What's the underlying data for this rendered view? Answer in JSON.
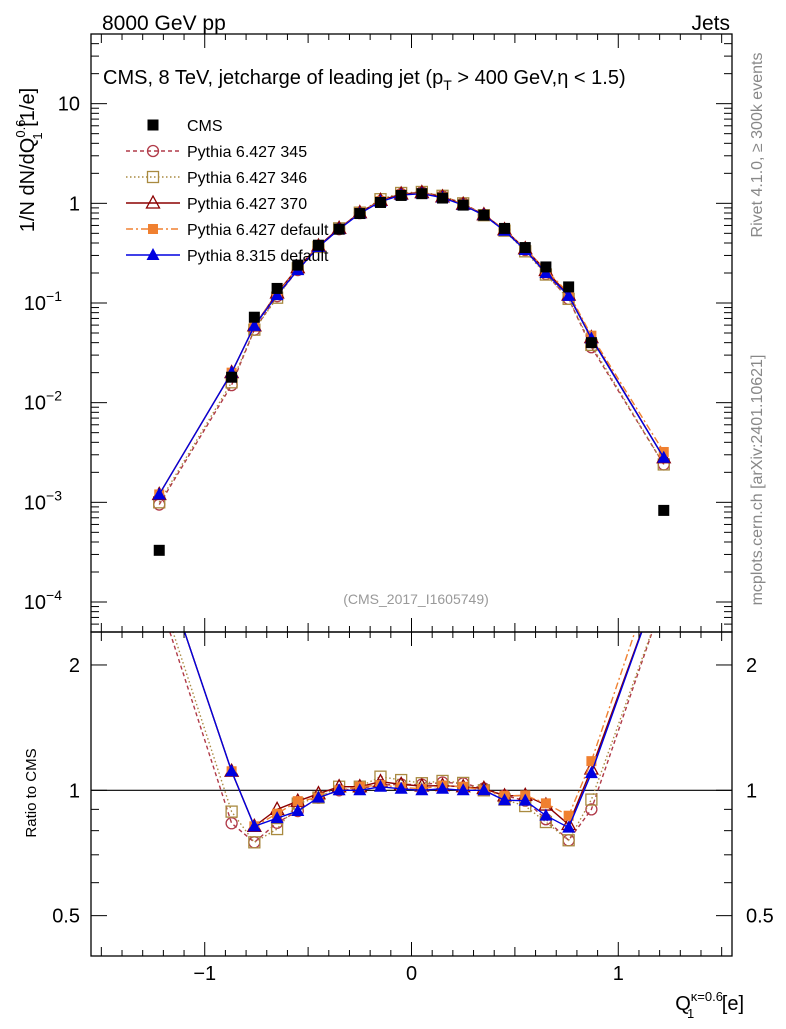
{
  "header": {
    "energy": "8000 GeV pp",
    "category": "Jets"
  },
  "side_labels": {
    "rivet": "Rivet 4.1.0, ≥ 300k events",
    "mcplots": "mcplots.cern.ch [arXiv:2401.10621]"
  },
  "chart_data": {
    "type": "line",
    "title": "CMS, 8 TeV, jetcharge of leading jet (p_T > 400 GeV,η < 1.5)",
    "title_parts": [
      "CMS, 8 TeV, jetcharge of leading jet (p",
      "T",
      " > 400 GeV,η < 1.5)"
    ],
    "analysis_tag": "(CMS_2017_I1605749)",
    "ylabel_main": "1/N dN/dQ1^0.6 [1/e]",
    "ylabel_main_parts": [
      "1/N dN/dQ",
      "0.6",
      "1",
      " [1/e]"
    ],
    "ylabel_ratio": "Ratio to CMS",
    "xlabel": "Q1^κ=0.6 [e]",
    "xlabel_parts": [
      "Q",
      "κ=0.6",
      "1",
      " [e]"
    ],
    "xlim": [
      -1.55,
      1.55
    ],
    "ylim_main": [
      5e-05,
      50
    ],
    "ylim_ratio": [
      0.4,
      2.4
    ],
    "scale_main": "log",
    "scale_ratio": "log",
    "x_ticks": [
      -1,
      0,
      1
    ],
    "x_tick_labels": [
      "−1",
      "0",
      "1"
    ],
    "y_ticks_main": [
      0.0001,
      0.001,
      0.01,
      0.1,
      1,
      10
    ],
    "y_tick_labels_main": [
      [
        "10",
        "−4"
      ],
      [
        "10",
        "−3"
      ],
      [
        "10",
        "−2"
      ],
      [
        "10",
        "−1"
      ],
      [
        "1",
        ""
      ],
      [
        "10",
        ""
      ]
    ],
    "y_ticks_ratio": [
      0.5,
      1,
      2
    ],
    "y_tick_labels_ratio": [
      "0.5",
      "1",
      "2"
    ],
    "legend_position": "top-left",
    "x": [
      -1.22,
      -0.87,
      -0.76,
      -0.65,
      -0.55,
      -0.45,
      -0.35,
      -0.25,
      -0.15,
      -0.05,
      0.05,
      0.15,
      0.25,
      0.35,
      0.45,
      0.55,
      0.65,
      0.76,
      0.87,
      1.22
    ],
    "data": {
      "name": "CMS",
      "color": "#000000",
      "values": [
        0.00033,
        0.018,
        0.072,
        0.14,
        0.24,
        0.38,
        0.55,
        0.79,
        1.02,
        1.2,
        1.25,
        1.13,
        0.96,
        0.76,
        0.56,
        0.36,
        0.23,
        0.145,
        0.04,
        0.00083
      ]
    },
    "series": [
      {
        "name": "Pythia 6.427 345",
        "color": "#b03a48",
        "dash": "4,3",
        "marker": "open-circle",
        "values": [
          0.00095,
          0.015,
          0.054,
          0.117,
          0.214,
          0.365,
          0.55,
          0.798,
          1.05,
          1.24,
          1.29,
          1.18,
          0.998,
          0.768,
          0.544,
          0.34,
          0.196,
          0.11,
          0.036,
          0.0024
        ]
      },
      {
        "name": "Pythia 6.427 346",
        "color": "#a98a40",
        "dash": "1.5,2.5",
        "marker": "open-square",
        "values": [
          0.001,
          0.016,
          0.054,
          0.113,
          0.223,
          0.365,
          0.561,
          0.806,
          1.1,
          1.27,
          1.3,
          1.19,
          1.0,
          0.76,
          0.532,
          0.33,
          0.193,
          0.11,
          0.038,
          0.0024
        ]
      },
      {
        "name": "Pythia 6.427 370",
        "color": "#8b0000",
        "dash": "",
        "marker": "open-triangle",
        "values": [
          0.0012,
          0.02,
          0.059,
          0.126,
          0.226,
          0.373,
          0.561,
          0.806,
          1.07,
          1.24,
          1.28,
          1.16,
          0.979,
          0.768,
          0.543,
          0.35,
          0.212,
          0.12,
          0.045,
          0.0028
        ]
      },
      {
        "name": "Pythia 6.427 default",
        "color": "#f08030",
        "dash": "7,3,2,3",
        "marker": "filled-square",
        "values": [
          0.0012,
          0.02,
          0.059,
          0.123,
          0.226,
          0.365,
          0.55,
          0.806,
          1.05,
          1.22,
          1.26,
          1.16,
          0.979,
          0.76,
          0.543,
          0.35,
          0.214,
          0.126,
          0.047,
          0.0032
        ]
      },
      {
        "name": "Pythia 8.315 default",
        "color": "#0000e0",
        "dash": "",
        "marker": "filled-triangle",
        "values": [
          0.0012,
          0.02,
          0.059,
          0.12,
          0.214,
          0.365,
          0.55,
          0.79,
          1.04,
          1.21,
          1.25,
          1.14,
          0.96,
          0.76,
          0.53,
          0.34,
          0.2,
          0.118,
          0.044,
          0.0028
        ]
      }
    ]
  }
}
